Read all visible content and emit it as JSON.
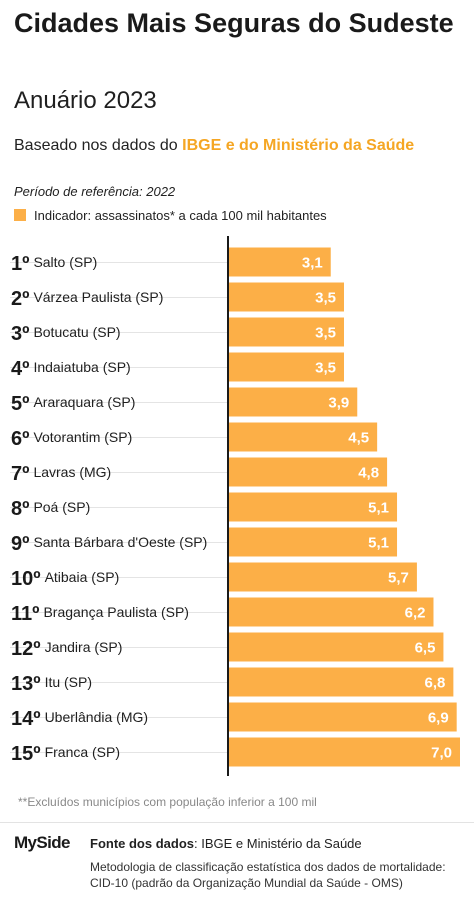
{
  "header": {
    "title": "Cidades Mais Seguras do Sudeste",
    "subtitle": "Anuário 2023",
    "based_prefix": "Baseado nos dados do ",
    "based_highlight": "IBGE e do Ministério da Saúde"
  },
  "period": "Período de referência: 2022",
  "legend": {
    "label": "Indicador: assassinatos* a cada 100 mil habitantes",
    "color": "#fcaf47"
  },
  "chart_data": {
    "type": "bar",
    "orientation": "horizontal",
    "categories": [
      "Salto (SP)",
      "Várzea Paulista (SP)",
      "Botucatu (SP)",
      "Indaiatuba (SP)",
      "Araraquara (SP)",
      "Votorantim (SP)",
      "Lavras (MG)",
      "Poá (SP)",
      "Santa Bárbara d'Oeste (SP)",
      "Atibaia (SP)",
      "Bragança Paulista (SP)",
      "Jandira (SP)",
      "Itu (SP)",
      "Uberlândia (MG)",
      "Franca (SP)"
    ],
    "ranks": [
      "1º",
      "2º",
      "3º",
      "4º",
      "5º",
      "6º",
      "7º",
      "8º",
      "9º",
      "10º",
      "11º",
      "12º",
      "13º",
      "14º",
      "15º"
    ],
    "values": [
      3.1,
      3.5,
      3.5,
      3.5,
      3.9,
      4.5,
      4.8,
      5.1,
      5.1,
      5.7,
      6.2,
      6.5,
      6.8,
      6.9,
      7.0
    ],
    "value_labels": [
      "3,1",
      "3,5",
      "3,5",
      "3,5",
      "3,9",
      "4,5",
      "4,8",
      "5,1",
      "5,1",
      "5,7",
      "6,2",
      "6,5",
      "6,8",
      "6,9",
      "7,0"
    ],
    "xlim": [
      0,
      7.0
    ],
    "bar_color": "#fcaf47"
  },
  "footnote": "**Excluídos municípios com população inferior a 100 mil",
  "footer": {
    "logo": "MySide",
    "source_label": "Fonte dos dados",
    "source_text": ": IBGE e Ministério da Saúde",
    "methodology": "Metodologia de classificação estatística dos dados de mortalidade: CID-10 (padrão da Organização Mundial da Saúde - OMS)"
  }
}
